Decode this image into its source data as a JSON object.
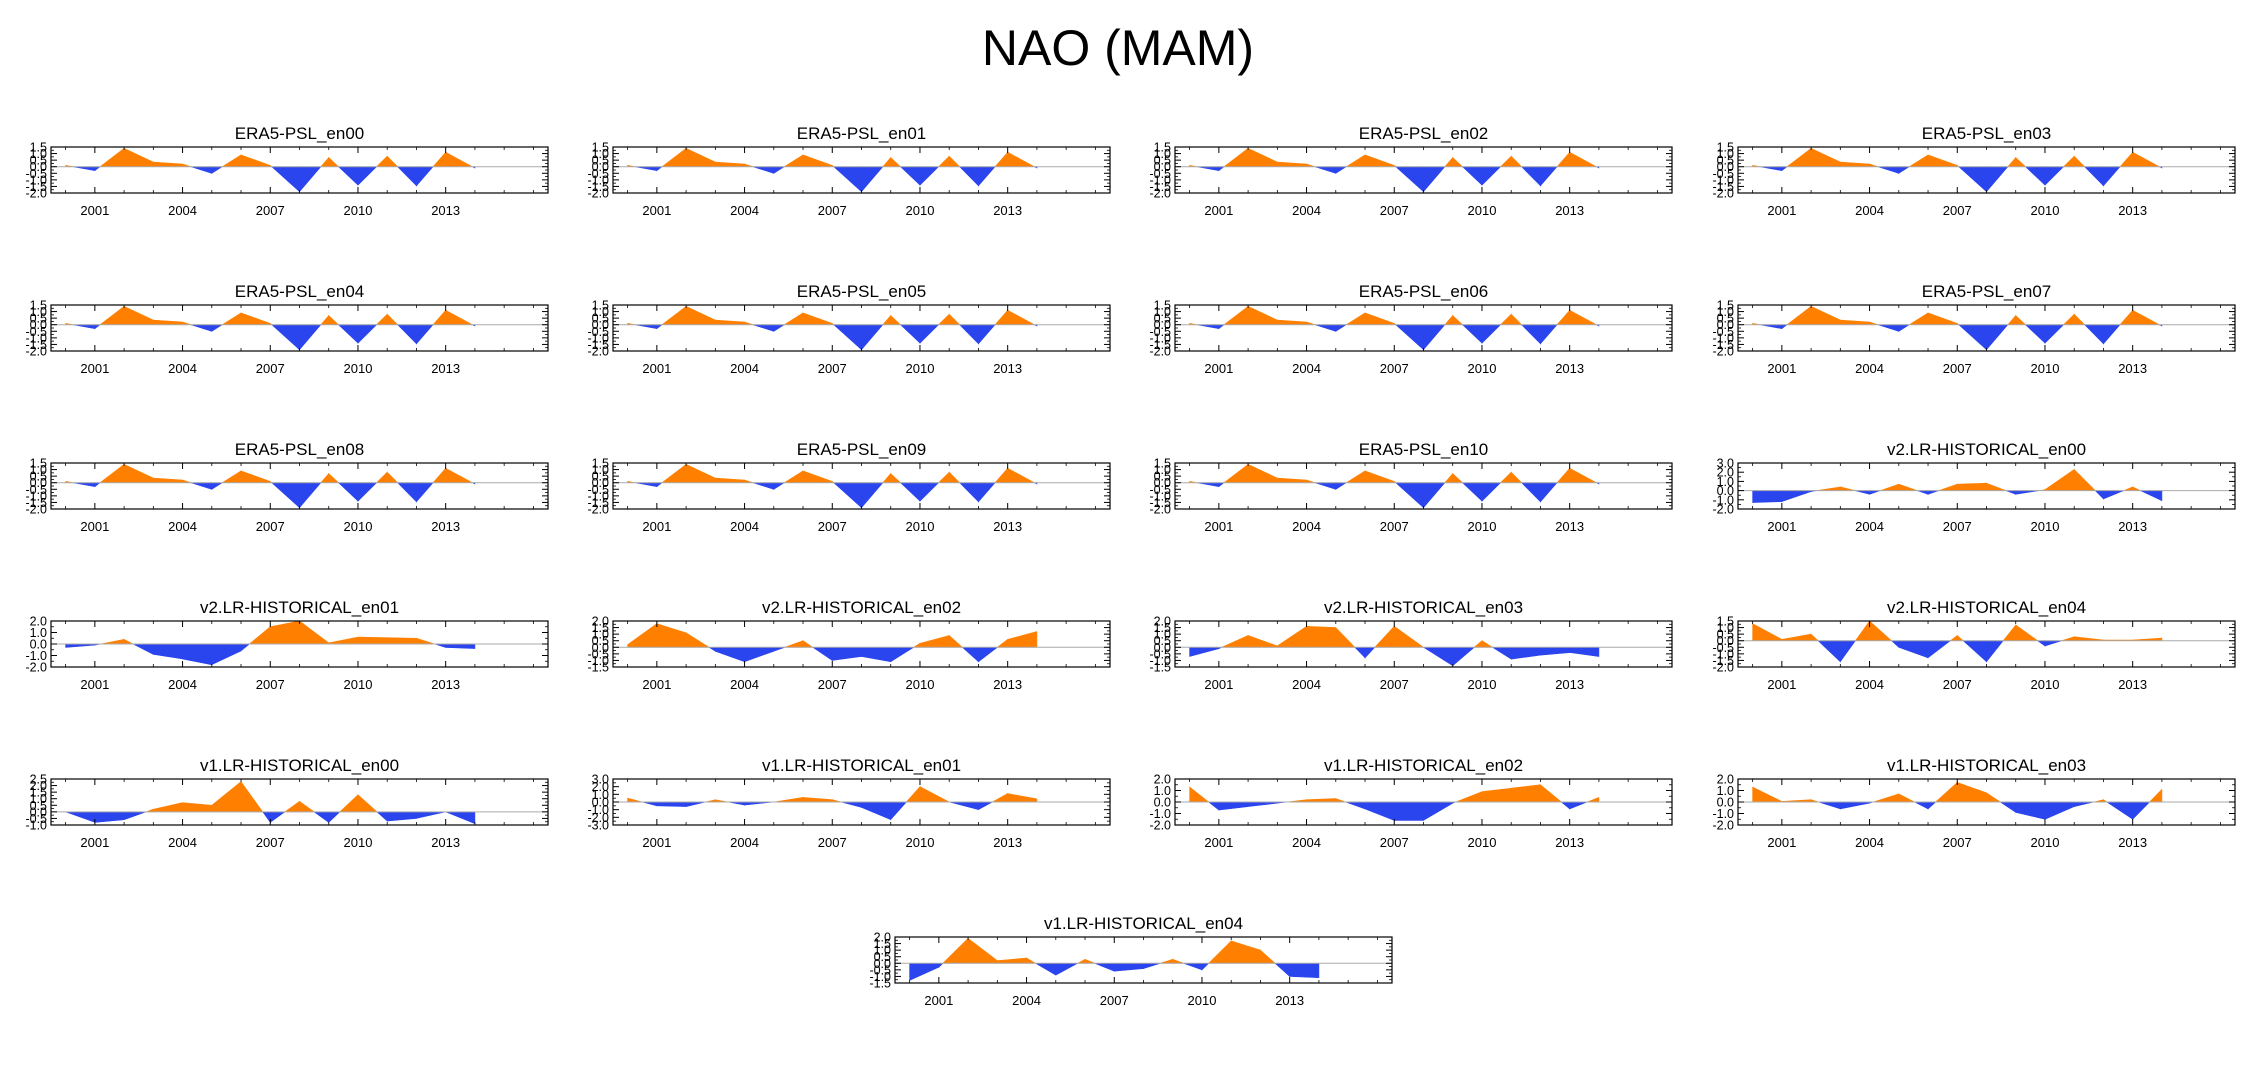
{
  "figure": {
    "title": "NAO (MAM)"
  },
  "colors": {
    "positive": "#ff8000",
    "negative": "#2a44ee",
    "axis": "#000000",
    "zero_line": "#aaaaaa",
    "background": "#ffffff"
  },
  "chart_data": [
    {
      "type": "area",
      "title": "ERA5-PSL_en00",
      "x": [
        2000,
        2001,
        2002,
        2003,
        2004,
        2005,
        2006,
        2007,
        2008,
        2009,
        2010,
        2011,
        2012,
        2013,
        2014
      ],
      "values": [
        0.1,
        -0.3,
        1.4,
        0.35,
        0.2,
        -0.5,
        0.9,
        0.1,
        -1.9,
        0.7,
        -1.4,
        0.8,
        -1.45,
        1.1,
        -0.1
      ],
      "ylim": [
        -2.0,
        1.5
      ],
      "yticks": [
        "1.5",
        "1.0",
        "0.5",
        "0.0",
        "-0.5",
        "-1.0",
        "-1.5",
        "-2.0"
      ],
      "xticks": [
        "2001",
        "2004",
        "2007",
        "2010",
        "2013"
      ],
      "xlim": [
        1999.5,
        2016.5
      ]
    },
    {
      "type": "area",
      "title": "ERA5-PSL_en01",
      "x": [
        2000,
        2001,
        2002,
        2003,
        2004,
        2005,
        2006,
        2007,
        2008,
        2009,
        2010,
        2011,
        2012,
        2013,
        2014
      ],
      "values": [
        0.1,
        -0.3,
        1.4,
        0.35,
        0.2,
        -0.5,
        0.9,
        0.1,
        -1.9,
        0.7,
        -1.4,
        0.8,
        -1.45,
        1.1,
        -0.1
      ],
      "ylim": [
        -2.0,
        1.5
      ],
      "yticks": [
        "1.5",
        "1.0",
        "0.5",
        "0.0",
        "-0.5",
        "-1.0",
        "-1.5",
        "-2.0"
      ],
      "xticks": [
        "2001",
        "2004",
        "2007",
        "2010",
        "2013"
      ],
      "xlim": [
        1999.5,
        2016.5
      ]
    },
    {
      "type": "area",
      "title": "ERA5-PSL_en02",
      "x": [
        2000,
        2001,
        2002,
        2003,
        2004,
        2005,
        2006,
        2007,
        2008,
        2009,
        2010,
        2011,
        2012,
        2013,
        2014
      ],
      "values": [
        0.1,
        -0.3,
        1.4,
        0.35,
        0.2,
        -0.5,
        0.9,
        0.1,
        -1.9,
        0.7,
        -1.4,
        0.8,
        -1.45,
        1.1,
        -0.1
      ],
      "ylim": [
        -2.0,
        1.5
      ],
      "yticks": [
        "1.5",
        "1.0",
        "0.5",
        "0.0",
        "-0.5",
        "-1.0",
        "-1.5",
        "-2.0"
      ],
      "xticks": [
        "2001",
        "2004",
        "2007",
        "2010",
        "2013"
      ],
      "xlim": [
        1999.5,
        2016.5
      ]
    },
    {
      "type": "area",
      "title": "ERA5-PSL_en03",
      "x": [
        2000,
        2001,
        2002,
        2003,
        2004,
        2005,
        2006,
        2007,
        2008,
        2009,
        2010,
        2011,
        2012,
        2013,
        2014
      ],
      "values": [
        0.1,
        -0.3,
        1.4,
        0.35,
        0.2,
        -0.5,
        0.9,
        0.1,
        -1.9,
        0.7,
        -1.4,
        0.8,
        -1.45,
        1.1,
        -0.1
      ],
      "ylim": [
        -2.0,
        1.5
      ],
      "yticks": [
        "1.5",
        "1.0",
        "0.5",
        "0.0",
        "-0.5",
        "-1.0",
        "-1.5",
        "-2.0"
      ],
      "xticks": [
        "2001",
        "2004",
        "2007",
        "2010",
        "2013"
      ],
      "xlim": [
        1999.5,
        2016.5
      ]
    },
    {
      "type": "area",
      "title": "ERA5-PSL_en04",
      "x": [
        2000,
        2001,
        2002,
        2003,
        2004,
        2005,
        2006,
        2007,
        2008,
        2009,
        2010,
        2011,
        2012,
        2013,
        2014
      ],
      "values": [
        0.1,
        -0.3,
        1.4,
        0.35,
        0.2,
        -0.5,
        0.9,
        0.1,
        -1.9,
        0.7,
        -1.4,
        0.8,
        -1.45,
        1.1,
        -0.1
      ],
      "ylim": [
        -2.0,
        1.5
      ],
      "yticks": [
        "1.5",
        "1.0",
        "0.5",
        "0.0",
        "-0.5",
        "-1.0",
        "-1.5",
        "-2.0"
      ],
      "xticks": [
        "2001",
        "2004",
        "2007",
        "2010",
        "2013"
      ],
      "xlim": [
        1999.5,
        2016.5
      ]
    },
    {
      "type": "area",
      "title": "ERA5-PSL_en05",
      "x": [
        2000,
        2001,
        2002,
        2003,
        2004,
        2005,
        2006,
        2007,
        2008,
        2009,
        2010,
        2011,
        2012,
        2013,
        2014
      ],
      "values": [
        0.1,
        -0.3,
        1.4,
        0.35,
        0.2,
        -0.5,
        0.9,
        0.1,
        -1.9,
        0.7,
        -1.4,
        0.8,
        -1.45,
        1.1,
        -0.1
      ],
      "ylim": [
        -2.0,
        1.5
      ],
      "yticks": [
        "1.5",
        "1.0",
        "0.5",
        "0.0",
        "-0.5",
        "-1.0",
        "-1.5",
        "-2.0"
      ],
      "xticks": [
        "2001",
        "2004",
        "2007",
        "2010",
        "2013"
      ],
      "xlim": [
        1999.5,
        2016.5
      ]
    },
    {
      "type": "area",
      "title": "ERA5-PSL_en06",
      "x": [
        2000,
        2001,
        2002,
        2003,
        2004,
        2005,
        2006,
        2007,
        2008,
        2009,
        2010,
        2011,
        2012,
        2013,
        2014
      ],
      "values": [
        0.1,
        -0.3,
        1.4,
        0.35,
        0.2,
        -0.5,
        0.9,
        0.1,
        -1.9,
        0.7,
        -1.4,
        0.8,
        -1.45,
        1.1,
        -0.1
      ],
      "ylim": [
        -2.0,
        1.5
      ],
      "yticks": [
        "1.5",
        "1.0",
        "0.5",
        "0.0",
        "-0.5",
        "-1.0",
        "-1.5",
        "-2.0"
      ],
      "xticks": [
        "2001",
        "2004",
        "2007",
        "2010",
        "2013"
      ],
      "xlim": [
        1999.5,
        2016.5
      ]
    },
    {
      "type": "area",
      "title": "ERA5-PSL_en07",
      "x": [
        2000,
        2001,
        2002,
        2003,
        2004,
        2005,
        2006,
        2007,
        2008,
        2009,
        2010,
        2011,
        2012,
        2013,
        2014
      ],
      "values": [
        0.1,
        -0.3,
        1.4,
        0.35,
        0.2,
        -0.5,
        0.9,
        0.1,
        -1.9,
        0.7,
        -1.4,
        0.8,
        -1.45,
        1.1,
        -0.1
      ],
      "ylim": [
        -2.0,
        1.5
      ],
      "yticks": [
        "1.5",
        "1.0",
        "0.5",
        "0.0",
        "-0.5",
        "-1.0",
        "-1.5",
        "-2.0"
      ],
      "xticks": [
        "2001",
        "2004",
        "2007",
        "2010",
        "2013"
      ],
      "xlim": [
        1999.5,
        2016.5
      ]
    },
    {
      "type": "area",
      "title": "ERA5-PSL_en08",
      "x": [
        2000,
        2001,
        2002,
        2003,
        2004,
        2005,
        2006,
        2007,
        2008,
        2009,
        2010,
        2011,
        2012,
        2013,
        2014
      ],
      "values": [
        0.1,
        -0.3,
        1.4,
        0.35,
        0.2,
        -0.5,
        0.9,
        0.1,
        -1.9,
        0.7,
        -1.4,
        0.8,
        -1.45,
        1.1,
        -0.1
      ],
      "ylim": [
        -2.0,
        1.5
      ],
      "yticks": [
        "1.5",
        "1.0",
        "0.5",
        "0.0",
        "-0.5",
        "-1.0",
        "-1.5",
        "-2.0"
      ],
      "xticks": [
        "2001",
        "2004",
        "2007",
        "2010",
        "2013"
      ],
      "xlim": [
        1999.5,
        2016.5
      ]
    },
    {
      "type": "area",
      "title": "ERA5-PSL_en09",
      "x": [
        2000,
        2001,
        2002,
        2003,
        2004,
        2005,
        2006,
        2007,
        2008,
        2009,
        2010,
        2011,
        2012,
        2013,
        2014
      ],
      "values": [
        0.1,
        -0.3,
        1.4,
        0.35,
        0.2,
        -0.5,
        0.9,
        0.1,
        -1.9,
        0.7,
        -1.4,
        0.8,
        -1.45,
        1.1,
        -0.1
      ],
      "ylim": [
        -2.0,
        1.5
      ],
      "yticks": [
        "1.5",
        "1.0",
        "0.5",
        "0.0",
        "-0.5",
        "-1.0",
        "-1.5",
        "-2.0"
      ],
      "xticks": [
        "2001",
        "2004",
        "2007",
        "2010",
        "2013"
      ],
      "xlim": [
        1999.5,
        2016.5
      ]
    },
    {
      "type": "area",
      "title": "ERA5-PSL_en10",
      "x": [
        2000,
        2001,
        2002,
        2003,
        2004,
        2005,
        2006,
        2007,
        2008,
        2009,
        2010,
        2011,
        2012,
        2013,
        2014
      ],
      "values": [
        0.1,
        -0.3,
        1.4,
        0.35,
        0.2,
        -0.5,
        0.9,
        0.1,
        -1.9,
        0.7,
        -1.4,
        0.8,
        -1.45,
        1.1,
        -0.1
      ],
      "ylim": [
        -2.0,
        1.5
      ],
      "yticks": [
        "1.5",
        "1.0",
        "0.5",
        "0.0",
        "-0.5",
        "-1.0",
        "-1.5",
        "-2.0"
      ],
      "xticks": [
        "2001",
        "2004",
        "2007",
        "2010",
        "2013"
      ],
      "xlim": [
        1999.5,
        2016.5
      ]
    },
    {
      "type": "area",
      "title": "v2.LR-HISTORICAL_en00",
      "x": [
        2000,
        2001,
        2002,
        2003,
        2004,
        2005,
        2006,
        2007,
        2008,
        2009,
        2010,
        2011,
        2012,
        2013,
        2014
      ],
      "values": [
        -1.3,
        -1.2,
        -0.1,
        0.4,
        -0.4,
        0.7,
        -0.4,
        0.7,
        0.8,
        -0.4,
        0.1,
        2.3,
        -0.9,
        0.4,
        -1.1
      ],
      "ylim": [
        -2.0,
        3.0
      ],
      "yticks": [
        "3.0",
        "2.0",
        "1.0",
        "0.0",
        "-1.0",
        "-2.0"
      ],
      "xticks": [
        "2001",
        "2004",
        "2007",
        "2010",
        "2013"
      ],
      "xlim": [
        1999.5,
        2016.5
      ]
    },
    {
      "type": "area",
      "title": "v2.LR-HISTORICAL_en01",
      "x": [
        2000,
        2001,
        2002,
        2003,
        2004,
        2005,
        2006,
        2007,
        2008,
        2009,
        2010,
        2011,
        2012,
        2013,
        2014
      ],
      "values": [
        -0.3,
        -0.1,
        0.4,
        -0.9,
        -1.3,
        -1.8,
        -0.6,
        1.5,
        2.0,
        0.1,
        0.6,
        0.55,
        0.5,
        -0.3,
        -0.4
      ],
      "ylim": [
        -2.0,
        2.0
      ],
      "yticks": [
        "2.0",
        "1.0",
        "0.0",
        "-1.0",
        "-2.0"
      ],
      "xticks": [
        "2001",
        "2004",
        "2007",
        "2010",
        "2013"
      ],
      "xlim": [
        1999.5,
        2016.5
      ]
    },
    {
      "type": "area",
      "title": "v2.LR-HISTORICAL_en02",
      "x": [
        2000,
        2001,
        2002,
        2003,
        2004,
        2005,
        2006,
        2007,
        2008,
        2009,
        2010,
        2011,
        2012,
        2013,
        2014
      ],
      "values": [
        0.2,
        1.8,
        1.1,
        -0.3,
        -1.1,
        -0.3,
        0.5,
        -1.0,
        -0.7,
        -1.1,
        0.3,
        0.9,
        -1.1,
        0.6,
        1.2
      ],
      "ylim": [
        -1.5,
        2.0
      ],
      "yticks": [
        "2.0",
        "1.5",
        "1.0",
        "0.5",
        "0.0",
        "-0.5",
        "-1.0",
        "-1.5"
      ],
      "xticks": [
        "2001",
        "2004",
        "2007",
        "2010",
        "2013"
      ],
      "xlim": [
        1999.5,
        2016.5
      ]
    },
    {
      "type": "area",
      "title": "v2.LR-HISTORICAL_en03",
      "x": [
        2000,
        2001,
        2002,
        2003,
        2004,
        2005,
        2006,
        2007,
        2008,
        2009,
        2010,
        2011,
        2012,
        2013,
        2014
      ],
      "values": [
        -0.7,
        -0.1,
        0.9,
        0.1,
        1.6,
        1.5,
        -0.8,
        1.6,
        0.0,
        -1.4,
        0.5,
        -0.9,
        -0.6,
        -0.4,
        -0.7
      ],
      "ylim": [
        -1.5,
        2.0
      ],
      "yticks": [
        "2.0",
        "1.5",
        "1.0",
        "0.5",
        "0.0",
        "-0.5",
        "-1.0",
        "-1.5"
      ],
      "xticks": [
        "2001",
        "2004",
        "2007",
        "2010",
        "2013"
      ],
      "xlim": [
        1999.5,
        2016.5
      ]
    },
    {
      "type": "area",
      "title": "v2.LR-HISTORICAL_en04",
      "x": [
        2000,
        2001,
        2002,
        2003,
        2004,
        2005,
        2006,
        2007,
        2008,
        2009,
        2010,
        2011,
        2012,
        2013,
        2014
      ],
      "values": [
        1.3,
        0.1,
        0.5,
        -1.6,
        1.5,
        -0.5,
        -1.3,
        0.4,
        -1.6,
        1.2,
        -0.4,
        0.3,
        0.05,
        0.05,
        0.2
      ],
      "ylim": [
        -2.0,
        1.5
      ],
      "yticks": [
        "1.5",
        "1.0",
        "0.5",
        "0.0",
        "-0.5",
        "-1.0",
        "-1.5",
        "-2.0"
      ],
      "xticks": [
        "2001",
        "2004",
        "2007",
        "2010",
        "2013"
      ],
      "xlim": [
        1999.5,
        2016.5
      ]
    },
    {
      "type": "area",
      "title": "v1.LR-HISTORICAL_en00",
      "x": [
        2000,
        2001,
        2002,
        2003,
        2004,
        2005,
        2006,
        2007,
        2008,
        2009,
        2010,
        2011,
        2012,
        2013,
        2014
      ],
      "values": [
        0.0,
        -0.8,
        -0.6,
        0.2,
        0.7,
        0.5,
        2.3,
        -0.8,
        0.8,
        -0.8,
        1.3,
        -0.7,
        -0.5,
        0.0,
        -0.9
      ],
      "ylim": [
        -1.0,
        2.5
      ],
      "yticks": [
        "2.5",
        "2.0",
        "1.5",
        "1.0",
        "0.5",
        "0.0",
        "-0.5",
        "-1.0"
      ],
      "xticks": [
        "2001",
        "2004",
        "2007",
        "2010",
        "2013"
      ],
      "xlim": [
        1999.5,
        2016.5
      ]
    },
    {
      "type": "area",
      "title": "v1.LR-HISTORICAL_en01",
      "x": [
        2000,
        2001,
        2002,
        2003,
        2004,
        2005,
        2006,
        2007,
        2008,
        2009,
        2010,
        2011,
        2012,
        2013,
        2014
      ],
      "values": [
        0.5,
        -0.5,
        -0.6,
        0.3,
        -0.4,
        0.0,
        0.6,
        0.3,
        -0.7,
        -2.3,
        2.0,
        0.0,
        -1.0,
        1.1,
        0.4
      ],
      "ylim": [
        -3.0,
        3.0
      ],
      "yticks": [
        "3.0",
        "2.0",
        "1.0",
        "0.0",
        "-1.0",
        "-2.0",
        "-3.0"
      ],
      "xticks": [
        "2001",
        "2004",
        "2007",
        "2010",
        "2013"
      ],
      "xlim": [
        1999.5,
        2016.5
      ]
    },
    {
      "type": "area",
      "title": "v1.LR-HISTORICAL_en02",
      "x": [
        2000,
        2001,
        2002,
        2003,
        2004,
        2005,
        2006,
        2007,
        2008,
        2009,
        2010,
        2011,
        2012,
        2013,
        2014
      ],
      "values": [
        1.3,
        -0.7,
        -0.4,
        -0.1,
        0.2,
        0.3,
        -0.6,
        -1.6,
        -1.6,
        -0.1,
        0.9,
        1.2,
        1.5,
        -0.6,
        0.4
      ],
      "ylim": [
        -2.0,
        2.0
      ],
      "yticks": [
        "2.0",
        "1.0",
        "0.0",
        "-1.0",
        "-2.0"
      ],
      "xticks": [
        "2001",
        "2004",
        "2007",
        "2010",
        "2013"
      ],
      "xlim": [
        1999.5,
        2016.5
      ]
    },
    {
      "type": "area",
      "title": "v1.LR-HISTORICAL_en03",
      "x": [
        2000,
        2001,
        2002,
        2003,
        2004,
        2005,
        2006,
        2007,
        2008,
        2009,
        2010,
        2011,
        2012,
        2013,
        2014
      ],
      "values": [
        1.3,
        0.05,
        0.2,
        -0.6,
        -0.1,
        0.7,
        -0.6,
        1.7,
        0.8,
        -0.9,
        -1.5,
        -0.4,
        0.2,
        -1.5,
        1.1
      ],
      "ylim": [
        -2.0,
        2.0
      ],
      "yticks": [
        "2.0",
        "1.0",
        "0.0",
        "-1.0",
        "-2.0"
      ],
      "xticks": [
        "2001",
        "2004",
        "2007",
        "2010",
        "2013"
      ],
      "xlim": [
        1999.5,
        2016.5
      ]
    },
    {
      "type": "area",
      "title": "v1.LR-HISTORICAL_en04",
      "x": [
        2000,
        2001,
        2002,
        2003,
        2004,
        2005,
        2006,
        2007,
        2008,
        2009,
        2010,
        2011,
        2012,
        2013,
        2014
      ],
      "values": [
        -1.3,
        -0.3,
        1.9,
        0.2,
        0.4,
        -0.9,
        0.3,
        -0.6,
        -0.4,
        0.3,
        -0.5,
        1.7,
        1.0,
        -1.0,
        -1.1
      ],
      "ylim": [
        -1.5,
        2.0
      ],
      "yticks": [
        "2.0",
        "1.5",
        "1.0",
        "0.5",
        "0.0",
        "-0.5",
        "-1.0",
        "-1.5"
      ],
      "xticks": [
        "2001",
        "2004",
        "2007",
        "2010",
        "2013"
      ],
      "xlim": [
        1999.5,
        2016.5
      ]
    }
  ]
}
